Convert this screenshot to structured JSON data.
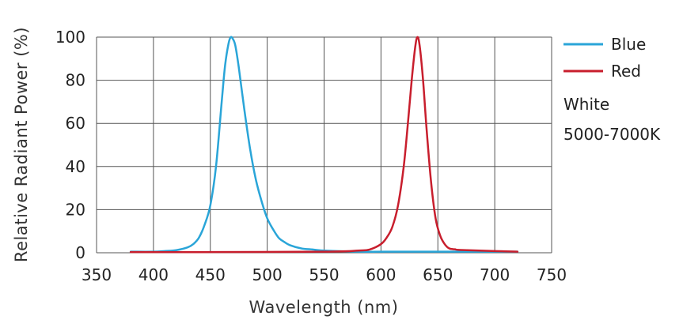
{
  "chart_data": {
    "type": "line",
    "title": "",
    "xlabel": "Wavelength (nm)",
    "ylabel": "Relative Radiant Power (%)",
    "xlim": [
      350,
      750
    ],
    "ylim": [
      0,
      100
    ],
    "xticks": [
      350,
      400,
      450,
      500,
      550,
      600,
      650,
      700,
      750
    ],
    "yticks": [
      0,
      20,
      40,
      60,
      80,
      100
    ],
    "grid": true,
    "legend_position": "right",
    "series": [
      {
        "name": "Blue",
        "color": "#2aa5d8",
        "x": [
          380,
          400,
          410,
          420,
          430,
          435,
          440,
          445,
          450,
          455,
          460,
          463,
          466,
          468,
          470,
          472,
          475,
          480,
          485,
          490,
          495,
          500,
          505,
          510,
          515,
          520,
          530,
          540,
          550,
          580,
          620,
          680,
          720
        ],
        "y": [
          0.5,
          0.5,
          0.8,
          1.2,
          2.5,
          4,
          7,
          13,
          22,
          40,
          70,
          87,
          97,
          100,
          99,
          96,
          86,
          66,
          48,
          34,
          24,
          16,
          11,
          7,
          5,
          3.5,
          2,
          1.5,
          1,
          0.5,
          0.5,
          0.5,
          0.5
        ]
      },
      {
        "name": "Red",
        "color": "#c81e2d",
        "x": [
          380,
          450,
          550,
          580,
          590,
          600,
          605,
          610,
          615,
          620,
          624,
          627,
          630,
          632,
          634,
          637,
          640,
          644,
          648,
          652,
          656,
          660,
          665,
          670,
          700,
          720
        ],
        "y": [
          0.3,
          0.3,
          0.5,
          1,
          1.5,
          4,
          7,
          12,
          22,
          40,
          62,
          80,
          95,
          100,
          96,
          80,
          58,
          33,
          16,
          8,
          4,
          2,
          1.6,
          1.3,
          0.8,
          0.5
        ]
      }
    ],
    "annotations": [
      "White",
      "5000-7000K"
    ]
  }
}
